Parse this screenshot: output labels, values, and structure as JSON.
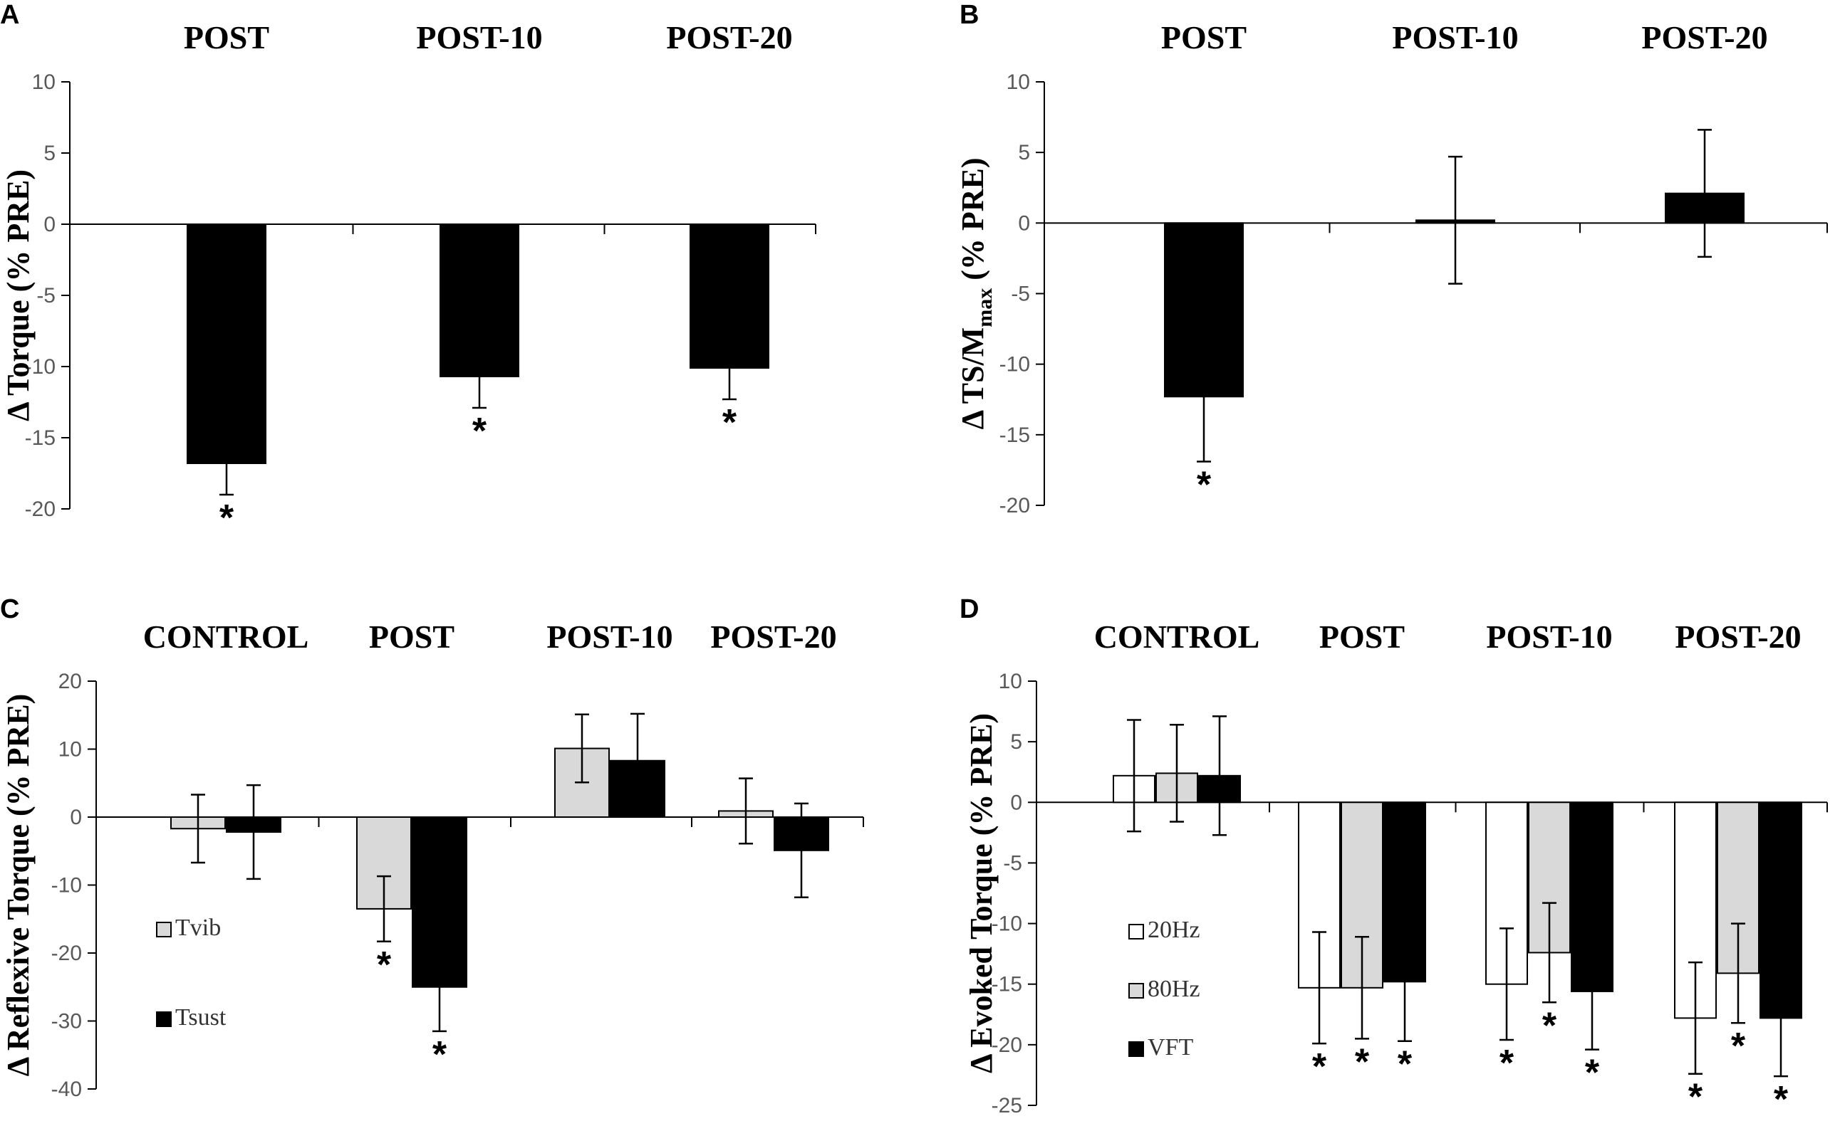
{
  "colors": {
    "black": "#000000",
    "gray": "#d9d9d9",
    "white": "#ffffff"
  },
  "chart_data": [
    {
      "panel": "A",
      "type": "bar",
      "title": "",
      "ylabel": "Δ Torque (% PRE)",
      "ylim": [
        -20,
        10
      ],
      "yticks": [
        "10",
        "5",
        "0",
        "-5",
        "-10",
        "-15",
        "-20"
      ],
      "categories": [
        "POST",
        "POST-10",
        "POST-20"
      ],
      "series": [
        {
          "name": "Torque",
          "color": "#000000",
          "values": [
            -16.8,
            -10.7,
            -10.1
          ],
          "errors": [
            2.2,
            2.2,
            2.2
          ],
          "significant": [
            true,
            true,
            true
          ]
        }
      ],
      "legend": []
    },
    {
      "panel": "B",
      "type": "bar",
      "title": "",
      "ylabel": "Δ TS/M",
      "ylabel_sub": "max",
      "ylabel_tail": " (% PRE)",
      "ylim": [
        -20,
        10
      ],
      "yticks": [
        "10",
        "5",
        "0",
        "-5",
        "-10",
        "-15",
        "-20"
      ],
      "categories": [
        "POST",
        "POST-10",
        "POST-20"
      ],
      "series": [
        {
          "name": "TS/Mmax",
          "color": "#000000",
          "values": [
            -12.3,
            0.2,
            2.1
          ],
          "errors": [
            4.6,
            4.5,
            4.5
          ],
          "significant": [
            true,
            false,
            false
          ]
        }
      ],
      "legend": []
    },
    {
      "panel": "C",
      "type": "bar",
      "title": "",
      "ylabel": "Δ Reflexive Torque (% PRE)",
      "ylim": [
        -40,
        20
      ],
      "yticks": [
        "20",
        "10",
        "0",
        "-10",
        "-20",
        "-30",
        "-40"
      ],
      "categories": [
        "CONTROL",
        "POST",
        "POST-10",
        "POST-20"
      ],
      "series": [
        {
          "name": "Tvib",
          "color": "#d9d9d9",
          "values": [
            -1.7,
            -13.5,
            10.1,
            0.9
          ],
          "errors": [
            5.0,
            4.8,
            5.0,
            4.8
          ],
          "significant": [
            false,
            true,
            false,
            false
          ]
        },
        {
          "name": "Tsust",
          "color": "#000000",
          "values": [
            -2.2,
            -25.0,
            8.3,
            -4.9
          ],
          "errors": [
            6.9,
            6.5,
            6.9,
            6.9
          ],
          "significant": [
            false,
            true,
            false,
            false
          ]
        }
      ],
      "legend": [
        "Tvib",
        "Tsust"
      ]
    },
    {
      "panel": "D",
      "type": "bar",
      "title": "",
      "ylabel": "Δ Evoked Torque (% PRE)",
      "ylim": [
        -25,
        10
      ],
      "yticks": [
        "10",
        "5",
        "0",
        "-5",
        "-10",
        "-15",
        "-20",
        "-25"
      ],
      "categories": [
        "CONTROL",
        "POST",
        "POST-10",
        "POST-20"
      ],
      "series": [
        {
          "name": "20Hz",
          "color": "#ffffff",
          "values": [
            2.2,
            -15.3,
            -15.0,
            -17.8
          ],
          "errors": [
            4.6,
            4.6,
            4.6,
            4.6
          ],
          "significant": [
            false,
            true,
            true,
            true
          ]
        },
        {
          "name": "80Hz",
          "color": "#d9d9d9",
          "values": [
            2.4,
            -15.3,
            -12.4,
            -14.1
          ],
          "errors": [
            4.0,
            4.2,
            4.1,
            4.1
          ],
          "significant": [
            false,
            true,
            true,
            true
          ]
        },
        {
          "name": "VFT",
          "color": "#000000",
          "values": [
            2.2,
            -14.8,
            -15.6,
            -17.8
          ],
          "errors": [
            4.9,
            4.9,
            4.8,
            4.8
          ],
          "significant": [
            false,
            true,
            true,
            true
          ]
        }
      ],
      "legend": [
        "20Hz",
        "80Hz",
        "VFT"
      ]
    }
  ]
}
